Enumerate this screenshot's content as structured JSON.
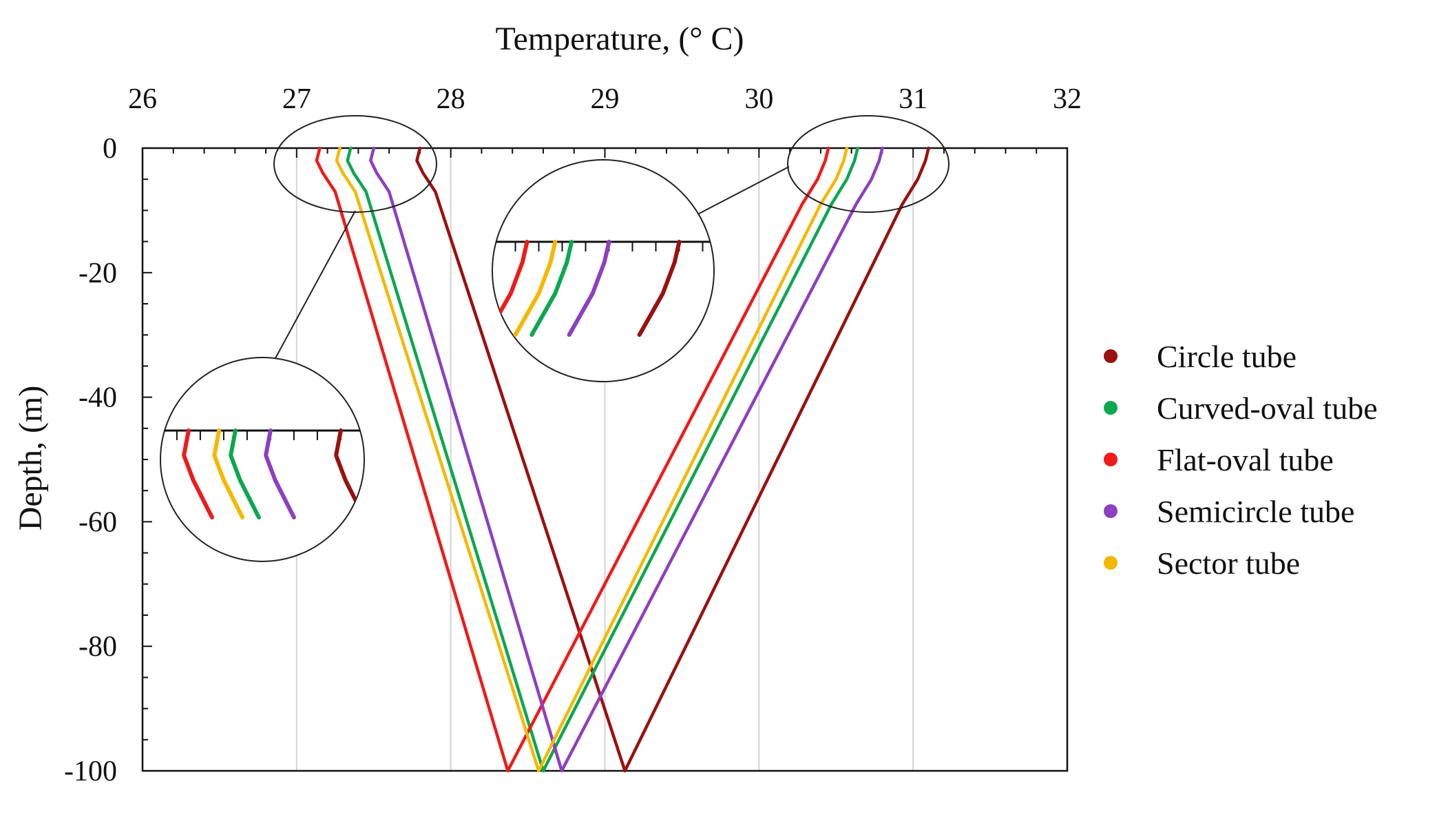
{
  "chart_data": {
    "type": "line",
    "xlabel": "Temperature, (° C)",
    "ylabel": "Depth, (m)",
    "xlim": [
      26,
      32
    ],
    "ylim": [
      -100,
      0
    ],
    "xticks": [
      "26",
      "27",
      "28",
      "29",
      "30",
      "31",
      "32"
    ],
    "yticks": [
      "0",
      "-20",
      "-40",
      "-60",
      "-80",
      "-100"
    ],
    "x_axis_position": "top",
    "grid": "vertical",
    "legend_position": "right",
    "series": [
      {
        "name": "Circle tube",
        "color": "#9B1010",
        "points": [
          [
            27.8,
            0
          ],
          [
            27.78,
            -2
          ],
          [
            27.82,
            -4
          ],
          [
            27.9,
            -7
          ],
          [
            29.13,
            -100
          ],
          [
            30.93,
            -9
          ],
          [
            31.03,
            -5
          ],
          [
            31.08,
            -2
          ],
          [
            31.1,
            0
          ]
        ]
      },
      {
        "name": "Curved-oval tube",
        "color": "#0AA84F",
        "points": [
          [
            27.35,
            0
          ],
          [
            27.33,
            -2
          ],
          [
            27.37,
            -4
          ],
          [
            27.45,
            -7
          ],
          [
            28.6,
            -100
          ],
          [
            30.47,
            -9
          ],
          [
            30.57,
            -5
          ],
          [
            30.62,
            -2
          ],
          [
            30.64,
            0
          ]
        ]
      },
      {
        "name": "Flat-oval tube",
        "color": "#F01A1A",
        "points": [
          [
            27.15,
            0
          ],
          [
            27.13,
            -2
          ],
          [
            27.17,
            -4
          ],
          [
            27.25,
            -7
          ],
          [
            28.37,
            -100
          ],
          [
            30.28,
            -9
          ],
          [
            30.38,
            -5
          ],
          [
            30.43,
            -2
          ],
          [
            30.45,
            0
          ]
        ]
      },
      {
        "name": "Semicircle tube",
        "color": "#8E3EC0",
        "points": [
          [
            27.5,
            0
          ],
          [
            27.48,
            -2
          ],
          [
            27.52,
            -4
          ],
          [
            27.6,
            -7
          ],
          [
            28.72,
            -100
          ],
          [
            30.63,
            -9
          ],
          [
            30.73,
            -5
          ],
          [
            30.78,
            -2
          ],
          [
            30.8,
            0
          ]
        ]
      },
      {
        "name": "Sector tube",
        "color": "#F5B800",
        "points": [
          [
            27.28,
            0
          ],
          [
            27.26,
            -2
          ],
          [
            27.3,
            -4
          ],
          [
            27.38,
            -7
          ],
          [
            28.57,
            -100
          ],
          [
            30.4,
            -9
          ],
          [
            30.5,
            -5
          ],
          [
            30.55,
            -2
          ],
          [
            30.57,
            0
          ]
        ]
      }
    ]
  }
}
